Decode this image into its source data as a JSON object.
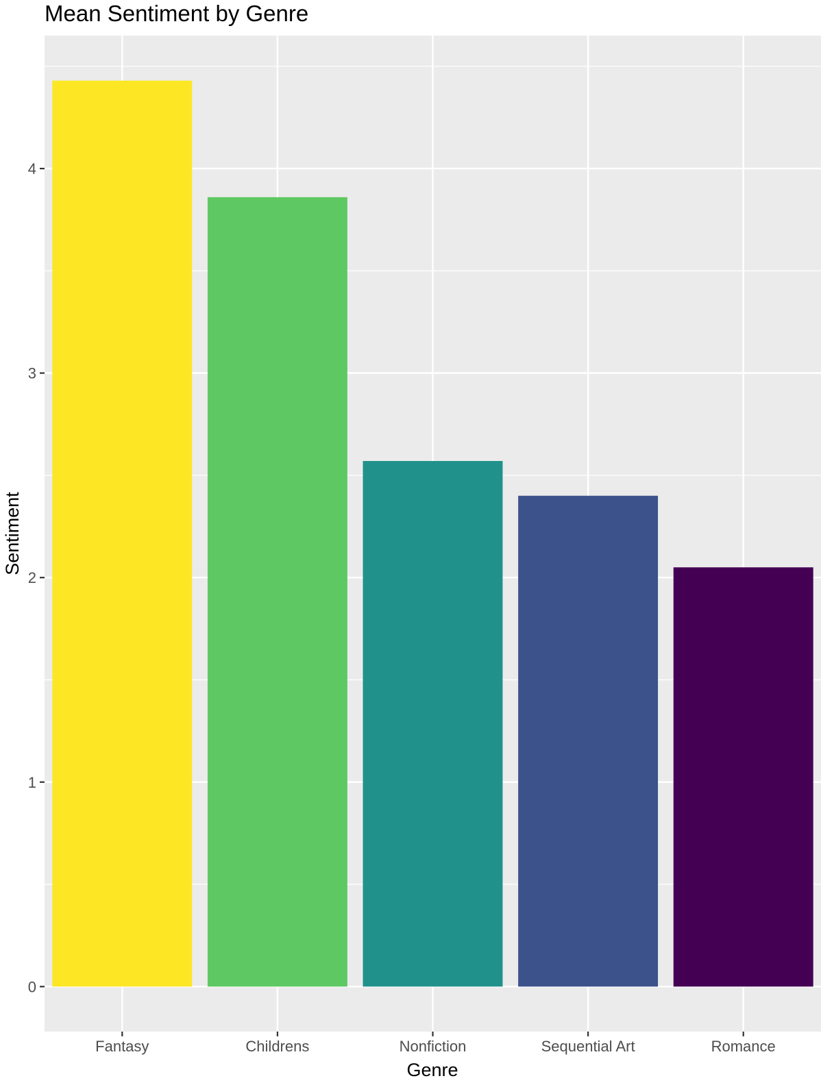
{
  "chart_data": {
    "type": "bar",
    "title": "Mean Sentiment by Genre",
    "xlabel": "Genre",
    "ylabel": "Sentiment",
    "categories": [
      "Fantasy",
      "Childrens",
      "Nonfiction",
      "Sequential Art",
      "Romance"
    ],
    "values": [
      4.43,
      3.86,
      2.57,
      2.4,
      2.05
    ],
    "colors": [
      "#fde725",
      "#5ec962",
      "#21918c",
      "#3b528b",
      "#440154"
    ],
    "y_ticks": [
      0,
      1,
      2,
      3,
      4
    ],
    "ylim": [
      -0.22,
      4.65
    ],
    "grid": true,
    "panel_background": "#ebebeb",
    "legend": "none"
  }
}
